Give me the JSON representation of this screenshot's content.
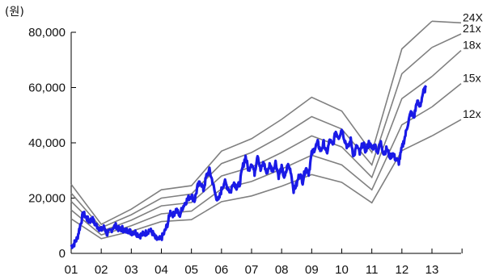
{
  "chart_data": {
    "type": "line",
    "title": "",
    "ylabel": "(원)",
    "xlabel": "",
    "ylim": [
      0,
      80000
    ],
    "xlim": [
      2001.0,
      2014.0
    ],
    "yticks": [
      {
        "value": 0,
        "label": "0"
      },
      {
        "value": 20000,
        "label": "20,000"
      },
      {
        "value": 40000,
        "label": "40,000"
      },
      {
        "value": 60000,
        "label": "60,000"
      },
      {
        "value": 80000,
        "label": "80,000"
      }
    ],
    "xticks": [
      {
        "value": 2001,
        "label": "01"
      },
      {
        "value": 2002,
        "label": "02"
      },
      {
        "value": 2003,
        "label": "03"
      },
      {
        "value": 2004,
        "label": "04"
      },
      {
        "value": 2005,
        "label": "05"
      },
      {
        "value": 2006,
        "label": "06"
      },
      {
        "value": 2007,
        "label": "07"
      },
      {
        "value": 2008,
        "label": "08"
      },
      {
        "value": 2009,
        "label": "09"
      },
      {
        "value": 2010,
        "label": "10"
      },
      {
        "value": 2011,
        "label": "11"
      },
      {
        "value": 2012,
        "label": "12"
      },
      {
        "value": 2013,
        "label": "13"
      }
    ],
    "price_color": "#1a1ae6",
    "band_color": "#808080",
    "bands": [
      {
        "name": "24X",
        "label_value": 84000,
        "points": [
          [
            2001.0,
            25000
          ],
          [
            2002.0,
            10500
          ],
          [
            2003.0,
            16000
          ],
          [
            2004.0,
            23000
          ],
          [
            2005.0,
            24500
          ],
          [
            2006.0,
            37000
          ],
          [
            2007.0,
            41500
          ],
          [
            2008.0,
            48500
          ],
          [
            2009.0,
            56500
          ],
          [
            2010.0,
            51500
          ],
          [
            2011.0,
            36500
          ],
          [
            2012.0,
            74000
          ],
          [
            2013.0,
            84000
          ]
        ]
      },
      {
        "name": "21x",
        "label_value": 80000,
        "points": [
          [
            2001.0,
            21800
          ],
          [
            2002.0,
            9300
          ],
          [
            2003.0,
            14000
          ],
          [
            2004.0,
            20000
          ],
          [
            2005.0,
            21500
          ],
          [
            2006.0,
            32500
          ],
          [
            2007.0,
            36500
          ],
          [
            2008.0,
            42500
          ],
          [
            2009.0,
            49500
          ],
          [
            2010.0,
            45000
          ],
          [
            2011.0,
            32000
          ],
          [
            2012.0,
            65000
          ],
          [
            2013.0,
            74500
          ]
        ]
      },
      {
        "name": "18x",
        "label_value": 74000,
        "points": [
          [
            2001.0,
            18800
          ],
          [
            2002.0,
            8000
          ],
          [
            2003.0,
            12000
          ],
          [
            2004.0,
            17200
          ],
          [
            2005.0,
            18400
          ],
          [
            2006.0,
            28000
          ],
          [
            2007.0,
            31200
          ],
          [
            2008.0,
            36500
          ],
          [
            2009.0,
            42500
          ],
          [
            2010.0,
            38500
          ],
          [
            2011.0,
            27500
          ],
          [
            2012.0,
            56000
          ],
          [
            2013.0,
            64000
          ]
        ]
      },
      {
        "name": "15x",
        "label_value": 62000,
        "points": [
          [
            2001.0,
            15700
          ],
          [
            2002.0,
            6700
          ],
          [
            2003.0,
            10000
          ],
          [
            2004.0,
            14300
          ],
          [
            2005.0,
            15300
          ],
          [
            2006.0,
            23300
          ],
          [
            2007.0,
            26000
          ],
          [
            2008.0,
            30500
          ],
          [
            2009.0,
            35500
          ],
          [
            2010.0,
            32000
          ],
          [
            2011.0,
            23000
          ],
          [
            2012.0,
            46500
          ],
          [
            2013.0,
            53000
          ]
        ]
      },
      {
        "name": "12x",
        "label_value": 49000,
        "points": [
          [
            2001.0,
            12500
          ],
          [
            2002.0,
            5300
          ],
          [
            2003.0,
            8000
          ],
          [
            2004.0,
            11500
          ],
          [
            2005.0,
            12200
          ],
          [
            2006.0,
            18700
          ],
          [
            2007.0,
            20800
          ],
          [
            2008.0,
            24300
          ],
          [
            2009.0,
            28500
          ],
          [
            2010.0,
            25700
          ],
          [
            2011.0,
            18300
          ],
          [
            2012.0,
            37200
          ],
          [
            2013.0,
            42500
          ]
        ]
      }
    ],
    "price": {
      "name": "",
      "points": [
        [
          2001.0,
          2500
        ],
        [
          2001.1,
          3500
        ],
        [
          2001.2,
          5500
        ],
        [
          2001.3,
          10000
        ],
        [
          2001.4,
          14500
        ],
        [
          2001.5,
          13000
        ],
        [
          2001.6,
          11500
        ],
        [
          2001.7,
          12500
        ],
        [
          2001.8,
          10500
        ],
        [
          2001.9,
          9500
        ],
        [
          2002.0,
          8500
        ],
        [
          2002.1,
          9500
        ],
        [
          2002.2,
          7000
        ],
        [
          2002.3,
          8000
        ],
        [
          2002.4,
          9500
        ],
        [
          2002.5,
          10000
        ],
        [
          2002.6,
          8500
        ],
        [
          2002.7,
          9000
        ],
        [
          2002.8,
          8000
        ],
        [
          2002.9,
          8500
        ],
        [
          2003.0,
          7500
        ],
        [
          2003.1,
          8000
        ],
        [
          2003.2,
          7000
        ],
        [
          2003.3,
          6500
        ],
        [
          2003.4,
          7000
        ],
        [
          2003.5,
          7500
        ],
        [
          2003.6,
          8500
        ],
        [
          2003.7,
          7500
        ],
        [
          2003.8,
          5500
        ],
        [
          2003.9,
          4800
        ],
        [
          2004.0,
          5500
        ],
        [
          2004.1,
          7500
        ],
        [
          2004.2,
          10500
        ],
        [
          2004.3,
          15000
        ],
        [
          2004.4,
          14000
        ],
        [
          2004.5,
          16000
        ],
        [
          2004.6,
          13500
        ],
        [
          2004.7,
          16500
        ],
        [
          2004.8,
          18500
        ],
        [
          2004.9,
          20000
        ],
        [
          2005.0,
          21000
        ],
        [
          2005.1,
          19000
        ],
        [
          2005.2,
          24000
        ],
        [
          2005.3,
          26000
        ],
        [
          2005.4,
          23000
        ],
        [
          2005.5,
          28000
        ],
        [
          2005.6,
          30000
        ],
        [
          2005.7,
          26000
        ],
        [
          2005.8,
          21000
        ],
        [
          2005.9,
          19000
        ],
        [
          2006.0,
          23000
        ],
        [
          2006.1,
          26000
        ],
        [
          2006.2,
          24000
        ],
        [
          2006.3,
          22000
        ],
        [
          2006.4,
          26000
        ],
        [
          2006.5,
          24000
        ],
        [
          2006.6,
          25000
        ],
        [
          2006.7,
          31000
        ],
        [
          2006.8,
          35000
        ],
        [
          2006.9,
          30000
        ],
        [
          2007.0,
          33000
        ],
        [
          2007.1,
          29000
        ],
        [
          2007.2,
          36000
        ],
        [
          2007.3,
          30000
        ],
        [
          2007.4,
          33000
        ],
        [
          2007.5,
          29000
        ],
        [
          2007.6,
          32000
        ],
        [
          2007.7,
          30000
        ],
        [
          2007.8,
          33000
        ],
        [
          2007.9,
          28000
        ],
        [
          2008.0,
          31000
        ],
        [
          2008.1,
          27000
        ],
        [
          2008.2,
          32000
        ],
        [
          2008.3,
          30000
        ],
        [
          2008.4,
          23000
        ],
        [
          2008.5,
          25000
        ],
        [
          2008.6,
          29000
        ],
        [
          2008.7,
          26000
        ],
        [
          2008.8,
          31000
        ],
        [
          2008.9,
          29000
        ],
        [
          2009.0,
          36000
        ],
        [
          2009.1,
          38000
        ],
        [
          2009.2,
          40000
        ],
        [
          2009.3,
          37000
        ],
        [
          2009.4,
          40000
        ],
        [
          2009.5,
          36000
        ],
        [
          2009.6,
          41000
        ],
        [
          2009.7,
          39000
        ],
        [
          2009.8,
          44000
        ],
        [
          2009.9,
          42000
        ],
        [
          2010.0,
          45000
        ],
        [
          2010.1,
          41000
        ],
        [
          2010.2,
          38000
        ],
        [
          2010.3,
          41000
        ],
        [
          2010.4,
          35000
        ],
        [
          2010.5,
          39000
        ],
        [
          2010.6,
          36000
        ],
        [
          2010.7,
          40000
        ],
        [
          2010.8,
          37000
        ],
        [
          2010.9,
          40000
        ],
        [
          2011.0,
          38000
        ],
        [
          2011.1,
          39000
        ],
        [
          2011.2,
          37000
        ],
        [
          2011.3,
          40000
        ],
        [
          2011.4,
          36000
        ],
        [
          2011.5,
          38000
        ],
        [
          2011.6,
          35000
        ],
        [
          2011.7,
          36000
        ],
        [
          2011.8,
          34000
        ],
        [
          2011.9,
          33000
        ],
        [
          2012.0,
          38000
        ],
        [
          2012.1,
          42000
        ],
        [
          2012.2,
          47000
        ],
        [
          2012.3,
          51000
        ],
        [
          2012.4,
          49000
        ],
        [
          2012.5,
          55000
        ],
        [
          2012.6,
          53000
        ],
        [
          2012.7,
          58000
        ],
        [
          2012.8,
          60000
        ]
      ]
    }
  }
}
